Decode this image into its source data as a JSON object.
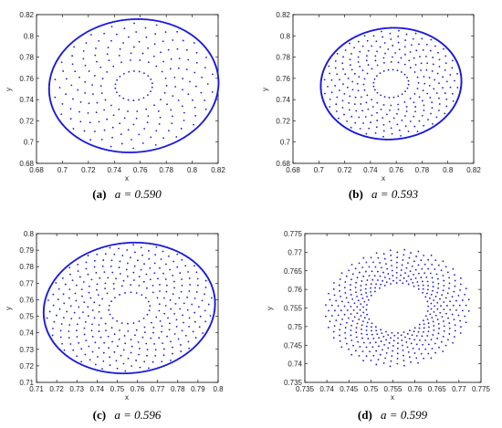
{
  "chart_data": [
    {
      "type": "scatter",
      "caption_letter": "(a)",
      "caption_text": "a = 0.590",
      "xlabel": "x",
      "ylabel": "y",
      "xlim": [
        0.68,
        0.82
      ],
      "ylim": [
        0.68,
        0.82
      ],
      "xticks": [
        "0.68",
        "0.7",
        "0.72",
        "0.74",
        "0.76",
        "0.78",
        "0.8",
        "0.82"
      ],
      "yticks": [
        "0.68",
        "0.7",
        "0.72",
        "0.74",
        "0.76",
        "0.78",
        "0.8",
        "0.82"
      ],
      "color": "#1a1adb",
      "orbit": {
        "center": [
          0.755,
          0.753
        ],
        "semi_axes": [
          0.066,
          0.062
        ],
        "rotation_deg": 25,
        "inner_ratio": 0.22,
        "arms": 22,
        "twist": 2.4,
        "points_per_arm": 10
      },
      "style": "spiral-arms-dense-rim"
    },
    {
      "type": "scatter",
      "caption_letter": "(b)",
      "caption_text": "a = 0.593",
      "xlabel": "x",
      "ylabel": "y",
      "xlim": [
        0.68,
        0.82
      ],
      "ylim": [
        0.68,
        0.82
      ],
      "xticks": [
        "0.68",
        "0.7",
        "0.72",
        "0.74",
        "0.76",
        "0.78",
        "0.8",
        "0.82"
      ],
      "yticks": [
        "0.68",
        "0.7",
        "0.72",
        "0.74",
        "0.76",
        "0.78",
        "0.8",
        "0.82"
      ],
      "color": "#1a1adb",
      "orbit": {
        "center": [
          0.756,
          0.755
        ],
        "semi_axes": [
          0.055,
          0.052
        ],
        "rotation_deg": 25,
        "inner_ratio": 0.25,
        "arms": 24,
        "twist": 2.6,
        "points_per_arm": 12
      },
      "style": "spiral-arms-dense-rim"
    },
    {
      "type": "scatter",
      "caption_letter": "(c)",
      "caption_text": "a = 0.596",
      "xlabel": "x",
      "ylabel": "y",
      "xlim": [
        0.71,
        0.8
      ],
      "ylim": [
        0.71,
        0.8
      ],
      "xticks": [
        "0.71",
        "0.72",
        "0.73",
        "0.74",
        "0.75",
        "0.76",
        "0.77",
        "0.78",
        "0.79",
        "0.8"
      ],
      "yticks": [
        "0.71",
        "0.72",
        "0.73",
        "0.74",
        "0.75",
        "0.76",
        "0.77",
        "0.78",
        "0.79",
        "0.8"
      ],
      "color": "#1a1adb",
      "orbit": {
        "center": [
          0.756,
          0.755
        ],
        "semi_axes": [
          0.043,
          0.039
        ],
        "rotation_deg": 22,
        "inner_ratio": 0.24,
        "arms": 22,
        "twist": 2.8,
        "points_per_arm": 16
      },
      "style": "spiral-arms-dense-rim"
    },
    {
      "type": "scatter",
      "caption_letter": "(d)",
      "caption_text": "a = 0.599",
      "xlabel": "x",
      "ylabel": "y",
      "xlim": [
        0.735,
        0.775
      ],
      "ylim": [
        0.735,
        0.775
      ],
      "xticks": [
        "0.735",
        "0.74",
        "0.745",
        "0.75",
        "0.755",
        "0.76",
        "0.765",
        "0.77",
        "0.775"
      ],
      "yticks": [
        "0.735",
        "0.74",
        "0.745",
        "0.75",
        "0.755",
        "0.76",
        "0.765",
        "0.77",
        "0.775"
      ],
      "color": "#1a1adb",
      "orbit": {
        "center": [
          0.756,
          0.755
        ],
        "semi_axes": [
          0.0165,
          0.0155
        ],
        "rotation_deg": 25,
        "inner_ratio": 0.43,
        "arms": 32,
        "twist": 2.2,
        "points_per_arm": 14
      },
      "style": "spiral-arms-uniform"
    }
  ]
}
